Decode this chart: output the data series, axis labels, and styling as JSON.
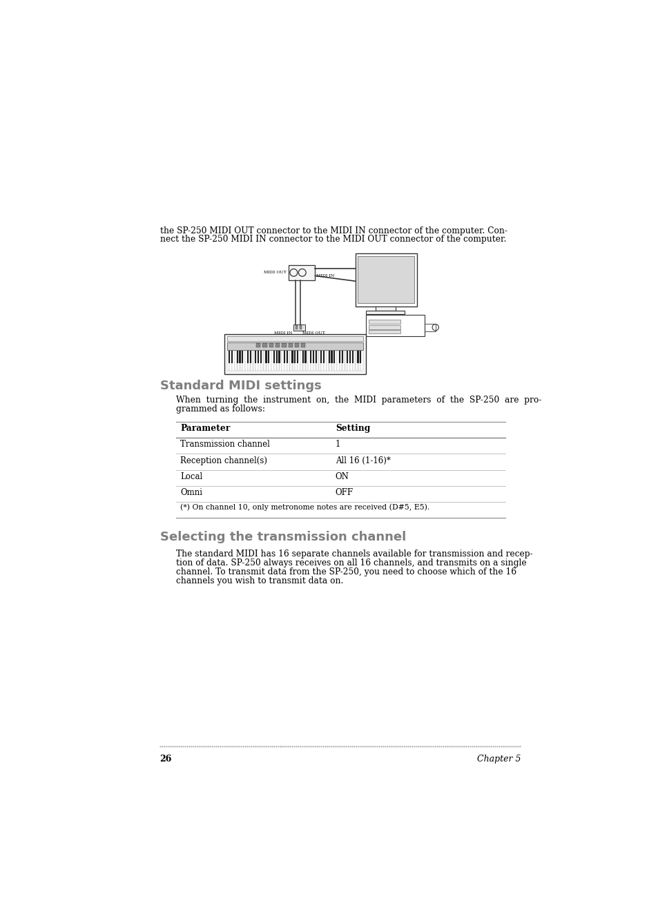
{
  "bg_color": "#ffffff",
  "text_color": "#000000",
  "heading_color": "#7f7f7f",
  "page_width": 9.54,
  "page_height": 13.08,
  "intro_line1": "the SP-250 MIDI OUT connector to the MIDI IN connector of the computer. Con-",
  "intro_line2": "nect the SP-250 MIDI IN connector to the MIDI OUT connector of the computer.",
  "section1_title": "Standard MIDI settings",
  "section1_body_line1": "When  turning  the  instrument  on,  the  MIDI  parameters  of  the  SP-250  are  pro-",
  "section1_body_line2": "grammed as follows:",
  "table_headers": [
    "Parameter",
    "Setting"
  ],
  "table_rows": [
    [
      "Transmission channel",
      "1"
    ],
    [
      "Reception channel(s)",
      "All 16 (1-16)*"
    ],
    [
      "Local",
      "ON"
    ],
    [
      "Omni",
      "OFF"
    ]
  ],
  "table_footnote": "(*) On channel 10, only metronome notes are received (D#5, E5).",
  "section2_title": "Selecting the transmission channel",
  "section2_body_line1": "The standard MIDI has 16 separate channels available for transmission and recep-",
  "section2_body_line2": "tion of data. SP-250 always receives on all 16 channels, and transmits on a single",
  "section2_body_line3": "channel. To transmit data from the SP-250, you need to choose which of the 16",
  "section2_body_line4": "channels you wish to transmit data on.",
  "footer_page": "26",
  "footer_chapter": "Chapter 5"
}
